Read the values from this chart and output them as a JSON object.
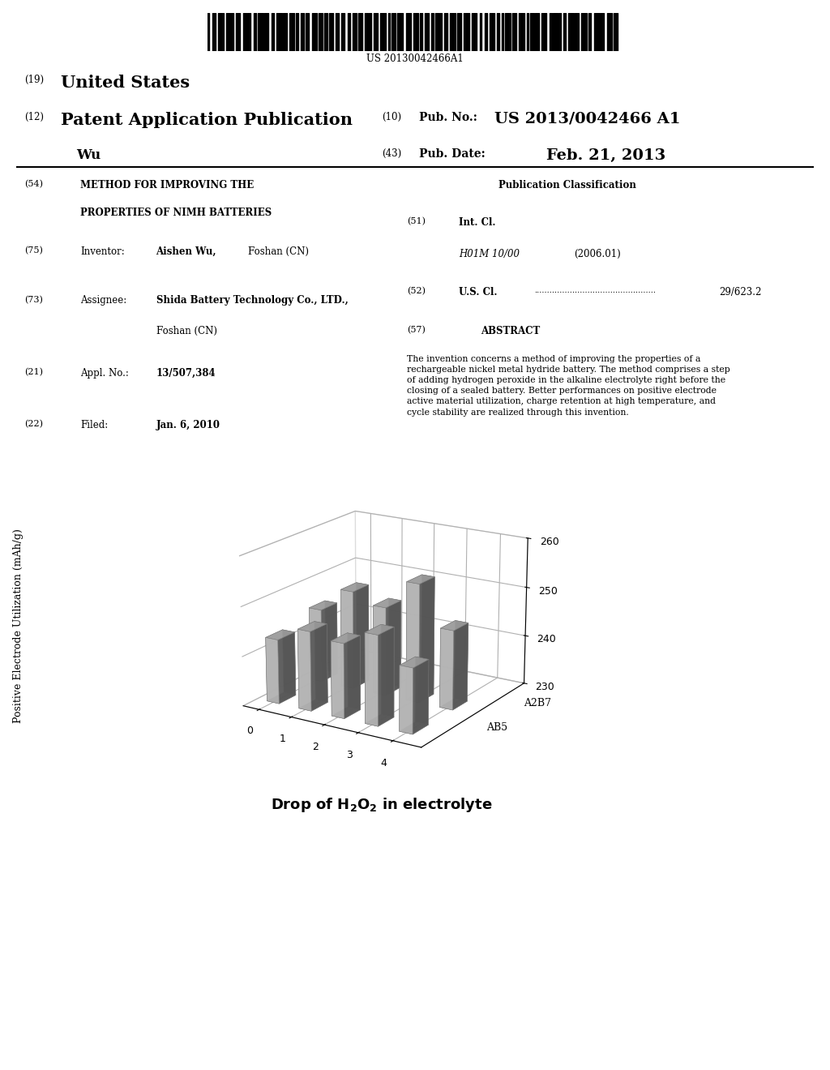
{
  "barcode_text": "US 20130042466A1",
  "header_19_text": "United States",
  "header_12_text": "Patent Application Publication",
  "header_wu": "Wu",
  "header_pub_no": "US 2013/0042466 A1",
  "header_pub_date": "Feb. 21, 2013",
  "field_54_title1": "METHOD FOR IMPROVING THE",
  "field_54_title2": "PROPERTIES OF NIMH BATTERIES",
  "field_75_value_bold": "Aishen Wu,",
  "field_75_value_normal": "Foshan (CN)",
  "field_73_value_bold": "Shida Battery Technology Co., LTD.,",
  "field_73_value_normal": "Foshan (CN)",
  "field_21_value": "13/507,384",
  "field_22_value": "Jan. 6, 2010",
  "pub_class_title": "Publication Classification",
  "field_51_class": "H01M 10/00",
  "field_51_date": "(2006.01)",
  "field_52_value": "29/623.2",
  "abstract_text": "The invention concerns a method of improving the properties of a rechargeable nickel metal hydride battery. The method comprises a step of adding hydrogen peroxide in the alkaline electrolyte right before the closing of a sealed battery. Better performances on positive electrode active material utilization, charge retention at high temperature, and cycle stability are realized through this invention.",
  "ylabel": "Positive Electrode Utilization (mAh/g)",
  "xlabel": "Drop of H₂O₂ in electrolyte",
  "ylim": [
    230,
    260
  ],
  "yticks": [
    230,
    240,
    250,
    260
  ],
  "x_positions": [
    0,
    1,
    2,
    3,
    4
  ],
  "series_A2B7": [
    245,
    250,
    248,
    254,
    246
  ],
  "series_AB5": [
    243,
    246,
    245,
    248,
    243
  ],
  "bar_color": "#cccccc",
  "bar_edge_color": "#777777",
  "background_color": "#ffffff",
  "elev": 18,
  "azim": -58
}
